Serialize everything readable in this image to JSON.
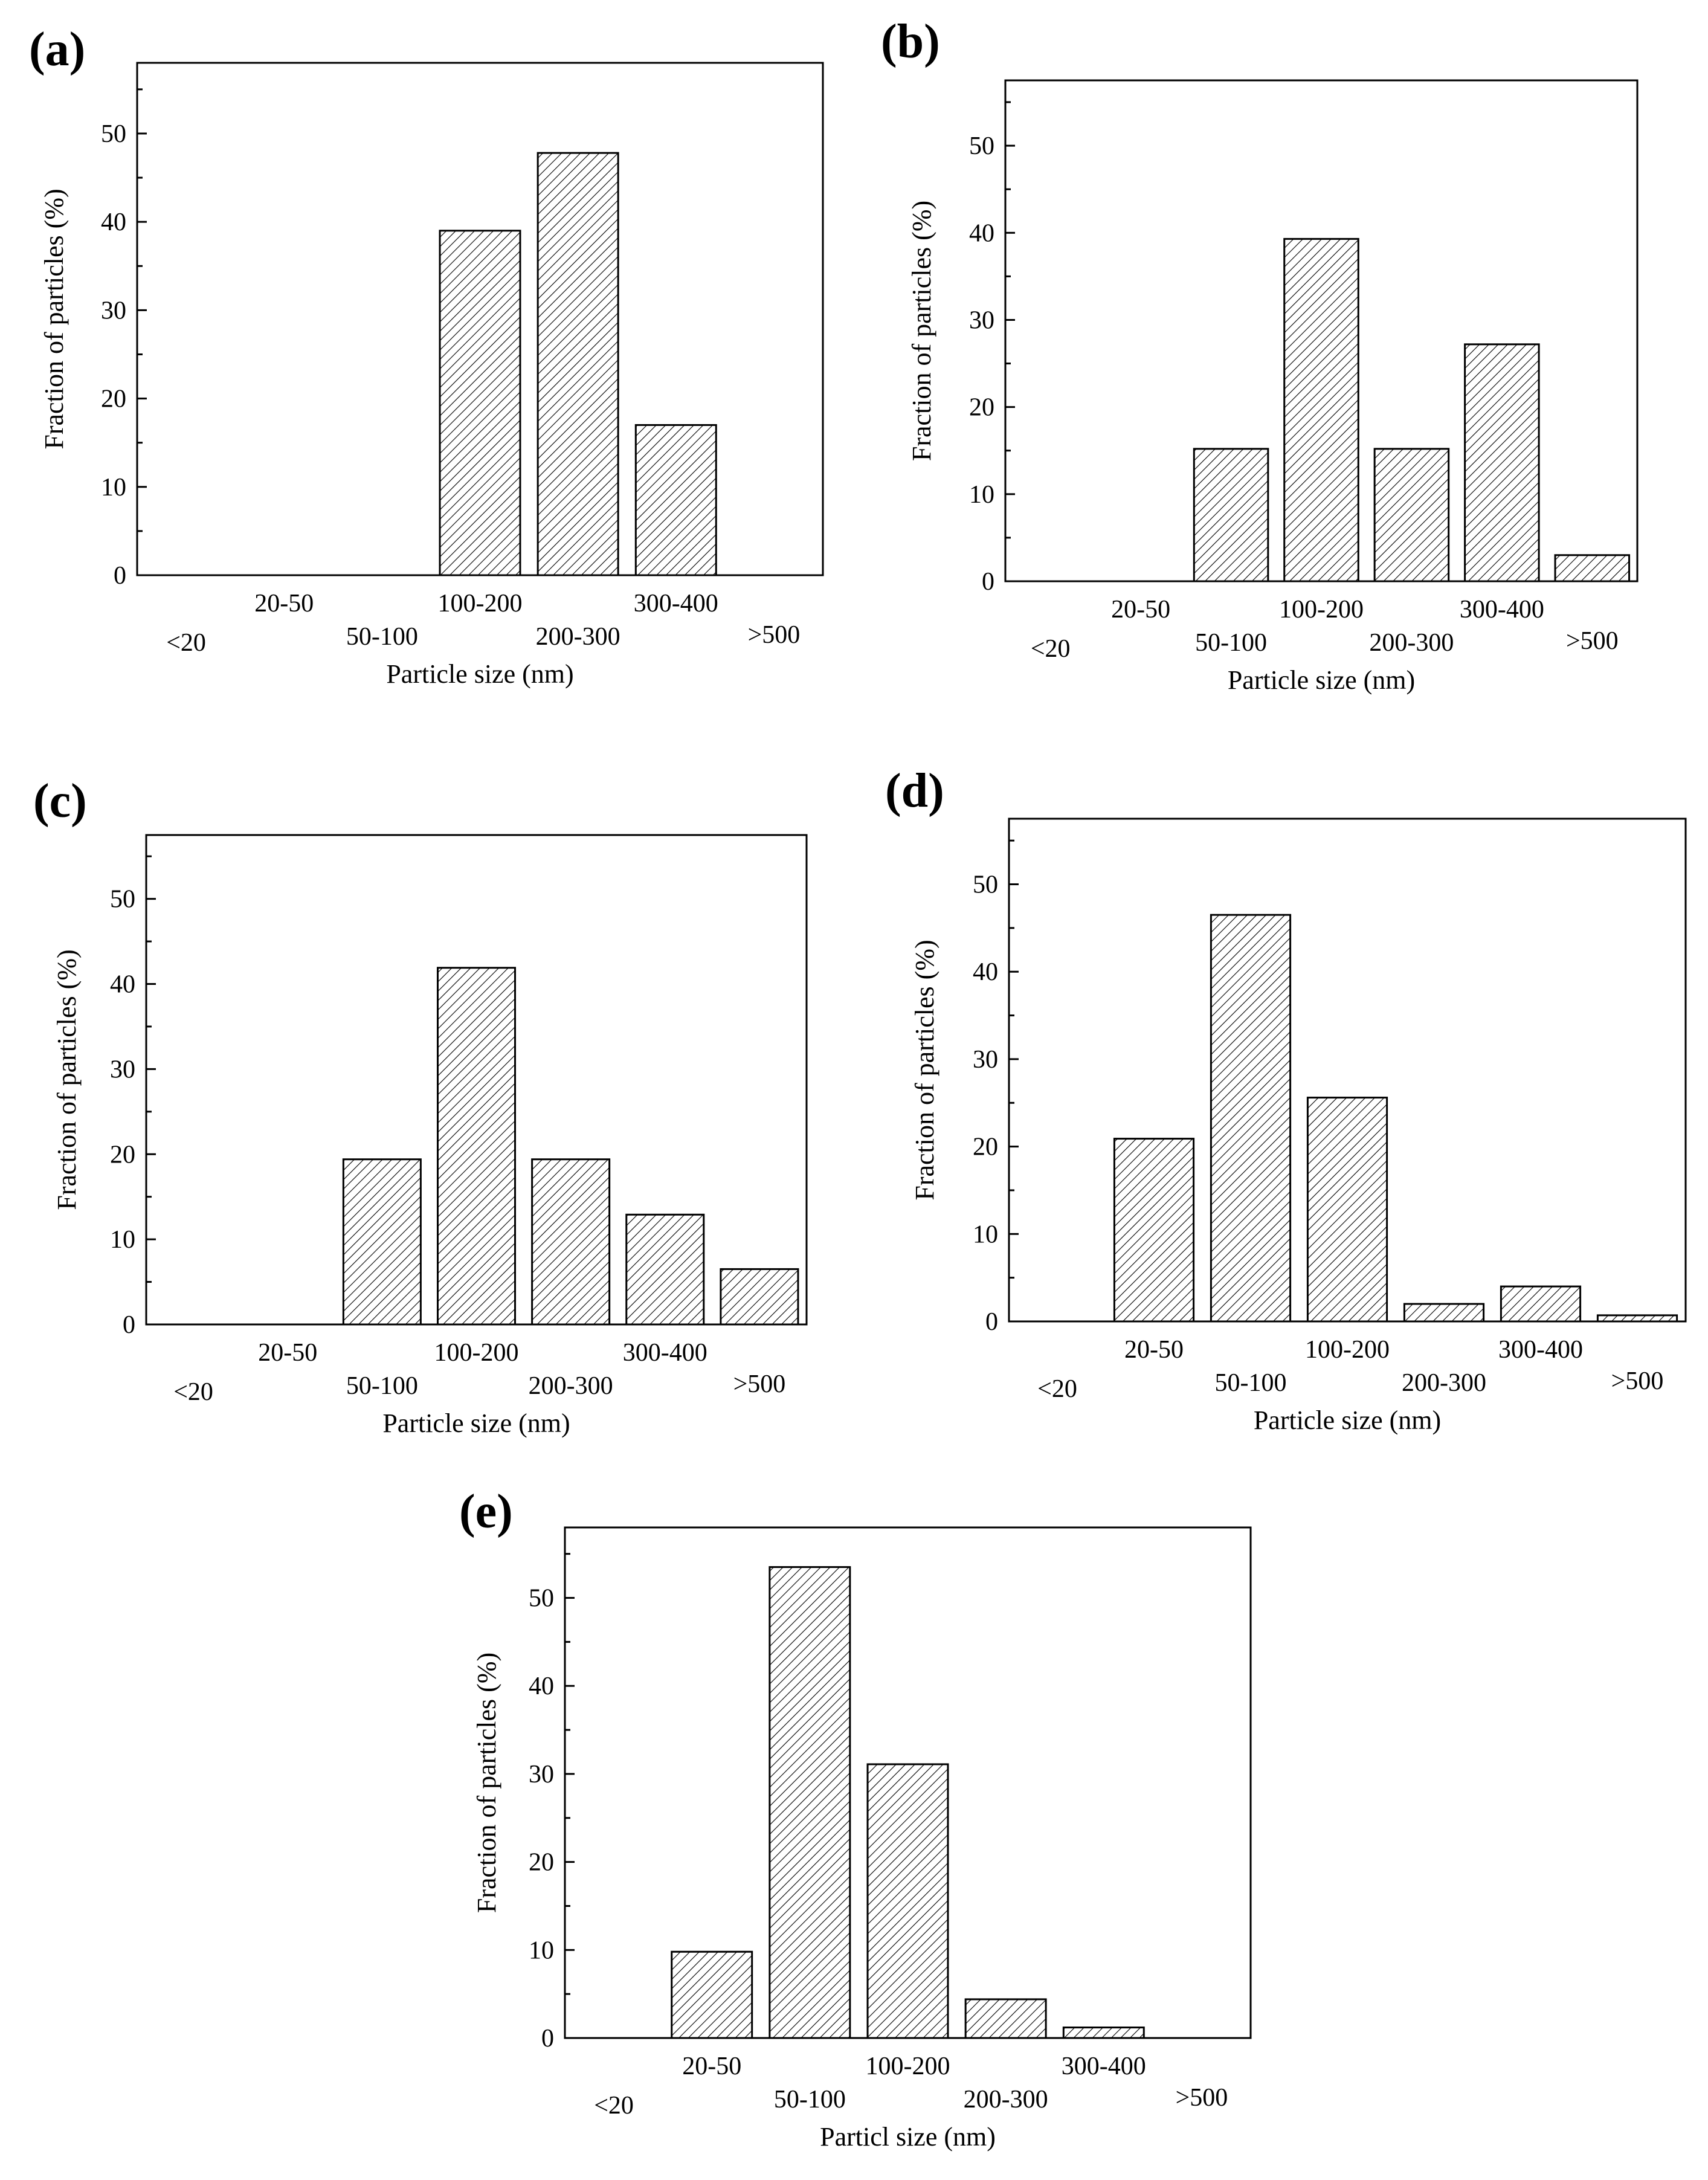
{
  "chart_data": [
    {
      "type": "bar",
      "panel_label": "(a)",
      "categories": [
        "<20",
        "20-50",
        "50-100",
        "100-200",
        "200-300",
        "300-400",
        ">500"
      ],
      "values": [
        0,
        0,
        0,
        39,
        47.8,
        17,
        0
      ],
      "ylabel": "Fraction of particles (%)",
      "xlabel": "Particle size (nm)",
      "ylim": [
        0,
        58
      ],
      "yticks": [
        0,
        10,
        20,
        30,
        40,
        50
      ]
    },
    {
      "type": "bar",
      "panel_label": "(b)",
      "categories": [
        "<20",
        "20-50",
        "50-100",
        "100-200",
        "200-300",
        "300-400",
        ">500"
      ],
      "values": [
        0,
        0,
        15.2,
        39.3,
        15.2,
        27.2,
        3
      ],
      "ylabel": "Fraction of particles (%)",
      "xlabel": "Particle size (nm)",
      "ylim": [
        0,
        57.5
      ],
      "yticks": [
        0,
        10,
        20,
        30,
        40,
        50
      ]
    },
    {
      "type": "bar",
      "panel_label": "(c)",
      "categories": [
        "<20",
        "20-50",
        "50-100",
        "100-200",
        "200-300",
        "300-400",
        ">500"
      ],
      "values": [
        0,
        0,
        19.4,
        41.9,
        19.4,
        12.9,
        6.5
      ],
      "ylabel": "Fraction of particles (%)",
      "xlabel": "Particle size (nm)",
      "ylim": [
        0,
        57.5
      ],
      "yticks": [
        0,
        10,
        20,
        30,
        40,
        50
      ]
    },
    {
      "type": "bar",
      "panel_label": "(d)",
      "categories": [
        "<20",
        "20-50",
        "50-100",
        "100-200",
        "200-300",
        "300-400",
        ">500"
      ],
      "values": [
        0,
        20.9,
        46.5,
        25.6,
        2,
        4,
        0.7
      ],
      "ylabel": "Fraction of particles (%)",
      "xlabel": "Particle size (nm)",
      "ylim": [
        0,
        57.5
      ],
      "yticks": [
        0,
        10,
        20,
        30,
        40,
        50
      ]
    },
    {
      "type": "bar",
      "panel_label": "(e)",
      "categories": [
        "<20",
        "20-50",
        "50-100",
        "100-200",
        "200-300",
        "300-400",
        ">500"
      ],
      "values": [
        0,
        9.8,
        53.5,
        31.1,
        4.4,
        1.2,
        0
      ],
      "ylabel": "Fraction of particles (%)",
      "xlabel": "Particl size (nm)",
      "ylim": [
        0,
        58
      ],
      "yticks": [
        0,
        10,
        20,
        30,
        40,
        50
      ]
    }
  ]
}
